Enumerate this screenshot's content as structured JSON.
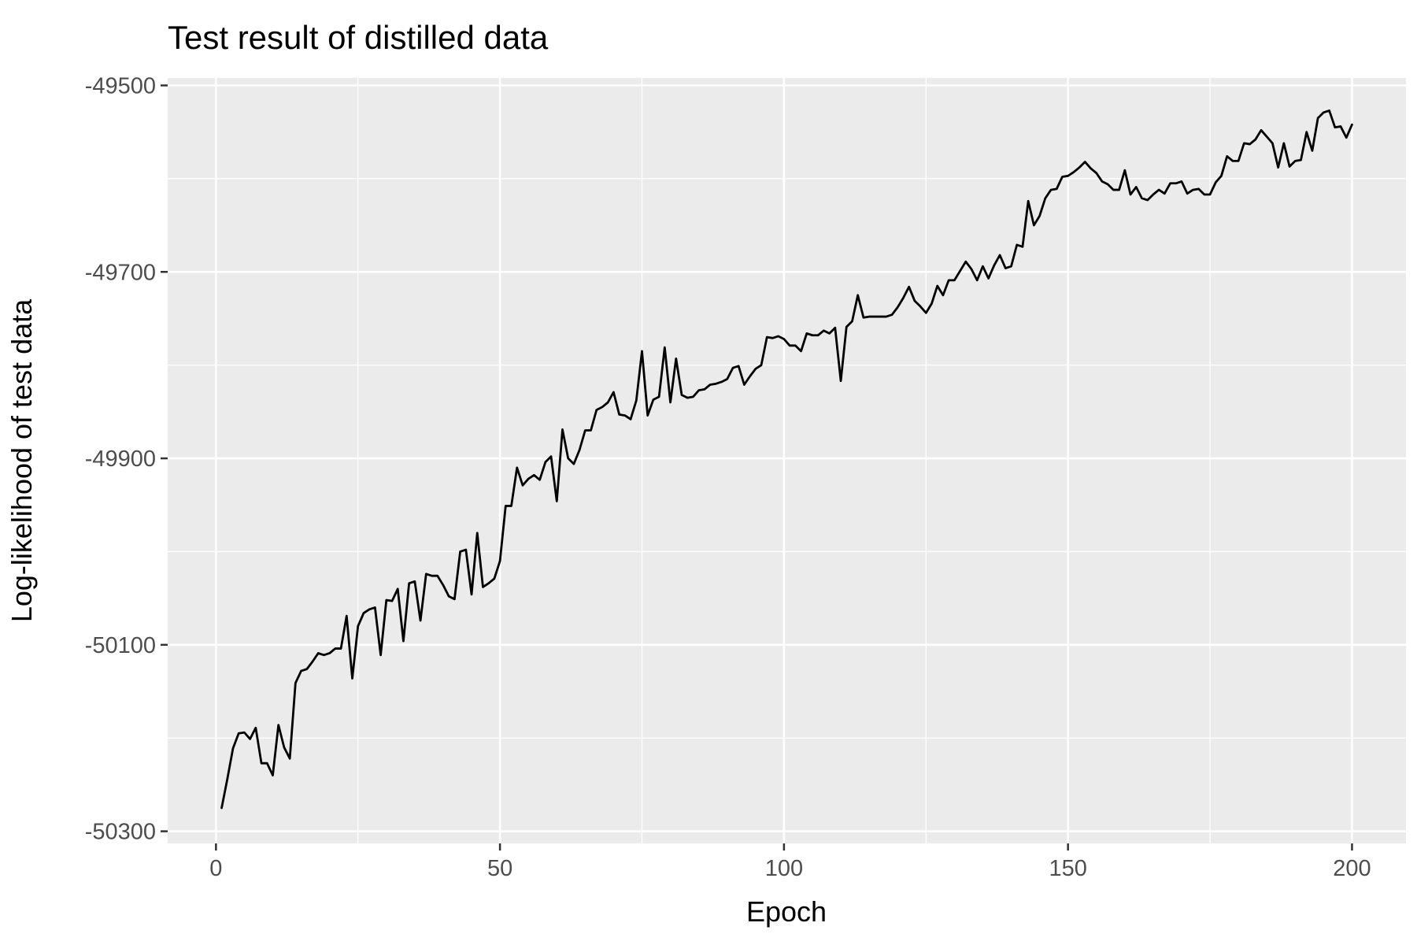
{
  "chart_data": {
    "type": "line",
    "title": "Test result of distilled data",
    "xlabel": "Epoch",
    "ylabel": "Log-likelihood of test data",
    "xlim": [
      -8.5,
      209.5
    ],
    "ylim": [
      -50313,
      -49492
    ],
    "x_ticks": [
      0,
      50,
      100,
      150,
      200
    ],
    "x_tick_labels": [
      "0",
      "50",
      "100",
      "150",
      "200"
    ],
    "x_minor_ticks": [
      25,
      75,
      125,
      175
    ],
    "y_ticks": [
      -49500,
      -49700,
      -49900,
      -50100,
      -50300
    ],
    "y_tick_labels": [
      "-49500",
      "-49700",
      "-49900",
      "-50100",
      "-50300"
    ],
    "y_minor_ticks": [
      -49600,
      -49800,
      -50000,
      -50200
    ],
    "grid": true,
    "legend": "none",
    "colors": {
      "panel_background": "#ebebeb",
      "grid": "#ffffff",
      "line": "#000000",
      "tick_label": "#4d4d4d",
      "tick_mark": "#333333",
      "text": "#000000"
    },
    "series": [
      {
        "x": [
          1,
          2,
          3,
          4,
          5,
          6,
          7,
          8,
          9,
          10,
          11,
          12,
          13,
          14,
          15,
          16,
          17,
          18,
          19,
          20,
          21,
          22,
          23,
          24,
          25,
          26,
          27,
          28,
          29,
          30,
          31,
          32,
          33,
          34,
          35,
          36,
          37,
          38,
          39,
          40,
          41,
          42,
          43,
          44,
          45,
          46,
          47,
          48,
          49,
          50,
          51,
          52,
          53,
          54,
          55,
          56,
          57,
          58,
          59,
          60,
          61,
          62,
          63,
          64,
          65,
          66,
          67,
          68,
          69,
          70,
          71,
          72,
          73,
          74,
          75,
          76,
          77,
          78,
          79,
          80,
          81,
          82,
          83,
          84,
          85,
          86,
          87,
          88,
          89,
          90,
          91,
          92,
          93,
          94,
          95,
          96,
          97,
          98,
          99,
          100,
          101,
          102,
          103,
          104,
          105,
          106,
          107,
          108,
          109,
          110,
          111,
          112,
          113,
          114,
          115,
          116,
          117,
          118,
          119,
          120,
          121,
          122,
          123,
          124,
          125,
          126,
          127,
          128,
          129,
          130,
          131,
          132,
          133,
          134,
          135,
          136,
          137,
          138,
          139,
          140,
          141,
          142,
          143,
          144,
          145,
          146,
          147,
          148,
          149,
          150,
          151,
          152,
          153,
          154,
          155,
          156,
          157,
          158,
          159,
          160,
          161,
          162,
          163,
          164,
          165,
          166,
          167,
          168,
          169,
          170,
          171,
          172,
          173,
          174,
          175,
          176,
          177,
          178,
          179,
          180,
          181,
          182,
          183,
          184,
          185,
          186,
          187,
          188,
          189,
          190,
          191,
          192,
          193,
          194,
          195,
          196,
          197,
          198,
          199,
          200
        ],
        "y": [
          -50275,
          -50244,
          -50211,
          -50195,
          -50194,
          -50201,
          -50189,
          -50227,
          -50227,
          -50240,
          -50186,
          -50210,
          -50222,
          -50141,
          -50128,
          -50126,
          -50118,
          -50109,
          -50111,
          -50109,
          -50104,
          -50104,
          -50069,
          -50136,
          -50080,
          -50066,
          -50062,
          -50060,
          -50111,
          -50052,
          -50053,
          -50040,
          -50096,
          -50034,
          -50032,
          -50074,
          -50024,
          -50026,
          -50026,
          -50036,
          -50048,
          -50051,
          -50000,
          -49998,
          -50046,
          -49980,
          -50038,
          -50034,
          -50029,
          -50010,
          -49951,
          -49951,
          -49910,
          -49929,
          -49922,
          -49918,
          -49923,
          -49904,
          -49898,
          -49946,
          -49869,
          -49900,
          -49906,
          -49891,
          -49870,
          -49870,
          -49848,
          -49845,
          -49840,
          -49829,
          -49853,
          -49854,
          -49858,
          -49838,
          -49785,
          -49854,
          -49837,
          -49834,
          -49781,
          -49840,
          -49793,
          -49832,
          -49835,
          -49834,
          -49827,
          -49826,
          -49821,
          -49820,
          -49818,
          -49815,
          -49803,
          -49801,
          -49821,
          -49812,
          -49804,
          -49800,
          -49770,
          -49771,
          -49769,
          -49772,
          -49779,
          -49779,
          -49785,
          -49766,
          -49768,
          -49768,
          -49763,
          -49766,
          -49760,
          -49817,
          -49759,
          -49753,
          -49725,
          -49749,
          -49748,
          -49748,
          -49748,
          -49748,
          -49746,
          -49738,
          -49728,
          -49716,
          -49731,
          -49737,
          -49744,
          -49734,
          -49715,
          -49725,
          -49709,
          -49709,
          -49699,
          -49689,
          -49697,
          -49709,
          -49694,
          -49707,
          -49693,
          -49682,
          -49696,
          -49694,
          -49671,
          -49673,
          -49624,
          -49650,
          -49640,
          -49621,
          -49612,
          -49611,
          -49598,
          -49597,
          -49593,
          -49588,
          -49582,
          -49589,
          -49594,
          -49603,
          -49606,
          -49612,
          -49612,
          -49591,
          -49617,
          -49609,
          -49621,
          -49623,
          -49617,
          -49612,
          -49616,
          -49605,
          -49605,
          -49603,
          -49616,
          -49612,
          -49611,
          -49617,
          -49617,
          -49604,
          -49597,
          -49576,
          -49581,
          -49581,
          -49562,
          -49563,
          -49558,
          -49548,
          -49555,
          -49562,
          -49588,
          -49562,
          -49587,
          -49581,
          -49580,
          -49550,
          -49570,
          -49535,
          -49529,
          -49527,
          -49545,
          -49544,
          -49556,
          -49542
        ]
      }
    ]
  }
}
